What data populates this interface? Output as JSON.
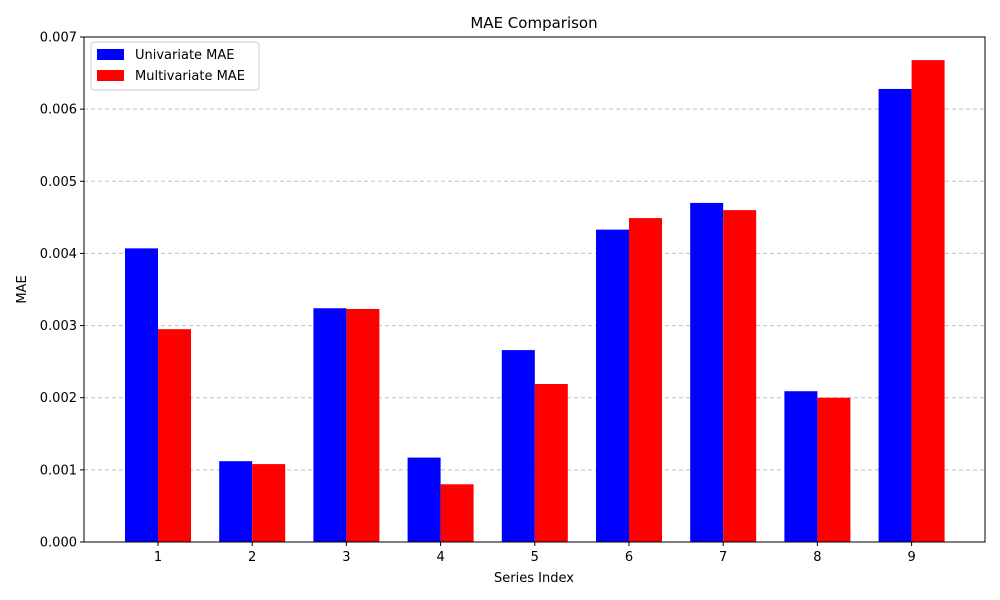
{
  "chart_data": {
    "type": "bar",
    "title": "MAE Comparison",
    "xlabel": "Series Index",
    "ylabel": "MAE",
    "categories": [
      "1",
      "2",
      "3",
      "4",
      "5",
      "6",
      "7",
      "8",
      "9"
    ],
    "series": [
      {
        "name": "Univariate MAE",
        "color": "#0000ff",
        "values": [
          0.00407,
          0.00112,
          0.00324,
          0.00117,
          0.00266,
          0.00433,
          0.0047,
          0.00209,
          0.00628
        ]
      },
      {
        "name": "Multivariate MAE",
        "color": "#ff0000",
        "values": [
          0.00295,
          0.00108,
          0.00323,
          0.0008,
          0.00219,
          0.00449,
          0.0046,
          0.002,
          0.00668
        ]
      }
    ],
    "ylim": [
      0,
      0.007
    ],
    "yticks": [
      "0.000",
      "0.001",
      "0.002",
      "0.003",
      "0.004",
      "0.005",
      "0.006",
      "0.007"
    ],
    "grid": "y-dashed",
    "legend_position": "top-left"
  }
}
